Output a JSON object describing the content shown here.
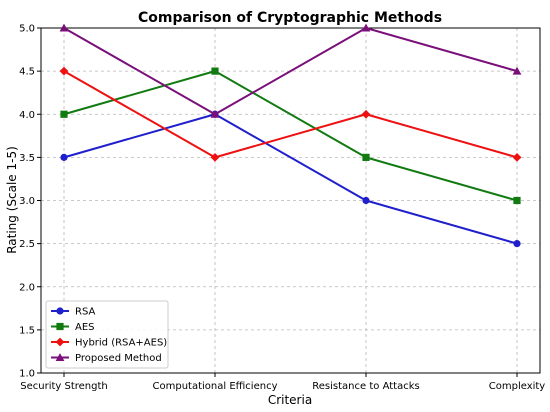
{
  "chart_data": {
    "type": "line",
    "title": "Comparison of Cryptographic Methods",
    "xlabel": "Criteria",
    "ylabel": "Rating (Scale 1-5)",
    "categories": [
      "Security Strength",
      "Computational Efficiency",
      "Resistance to Attacks",
      "Complexity"
    ],
    "ylim": [
      1.0,
      5.0
    ],
    "yticks": [
      "1.0",
      "1.5",
      "2.0",
      "2.5",
      "3.0",
      "3.5",
      "4.0",
      "4.5",
      "5.0"
    ],
    "grid": true,
    "legend_position": "bottom-left",
    "series": [
      {
        "name": "RSA",
        "values": [
          3.5,
          4.0,
          3.0,
          2.5
        ],
        "color": "#1f1fcc",
        "marker": "circle"
      },
      {
        "name": "AES",
        "values": [
          4.0,
          4.5,
          3.5,
          3.0
        ],
        "color": "#117a11",
        "marker": "square"
      },
      {
        "name": "Hybrid (RSA+AES)",
        "values": [
          4.5,
          3.5,
          4.0,
          3.5
        ],
        "color": "#ee1111",
        "marker": "diamond"
      },
      {
        "name": "Proposed Method",
        "values": [
          5.0,
          4.0,
          5.0,
          4.5
        ],
        "color": "#7a0f7a",
        "marker": "triangle"
      }
    ]
  }
}
